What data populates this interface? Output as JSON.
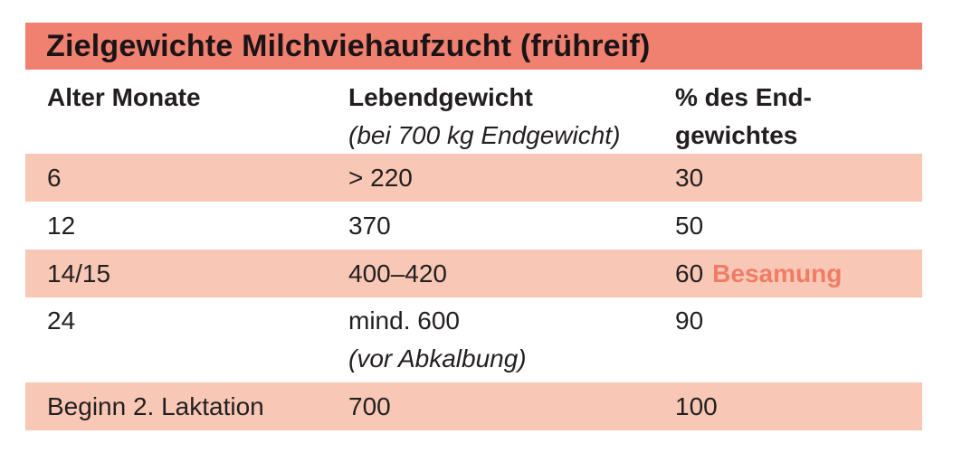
{
  "title": "Zielgewichte Milchviehaufzucht (frühreif)",
  "headers": {
    "col1": "Alter Monate",
    "col2": "Lebendgewicht",
    "col2_sub": "(bei 700 kg Endgewicht)",
    "col3_line1": "% des End-",
    "col3_line2": "gewichtes"
  },
  "rows": [
    {
      "age": "6",
      "weight": "> 220",
      "weight_note": "",
      "percent": "30",
      "note": ""
    },
    {
      "age": "12",
      "weight": "370",
      "weight_note": "",
      "percent": "50",
      "note": ""
    },
    {
      "age": "14/15",
      "weight": "400–420",
      "weight_note": "",
      "percent": "60",
      "note": "Besamung"
    },
    {
      "age": "24",
      "weight": "mind. 600",
      "weight_note": "(vor Abkalbung)",
      "percent": "90",
      "note": ""
    },
    {
      "age": "Beginn 2. Laktation",
      "weight": "700",
      "weight_note": "",
      "percent": "100",
      "note": ""
    }
  ],
  "colors": {
    "title_bar": "#f08070",
    "row_shade": "#f8c7b5",
    "highlight_text": "#ef7d65"
  }
}
